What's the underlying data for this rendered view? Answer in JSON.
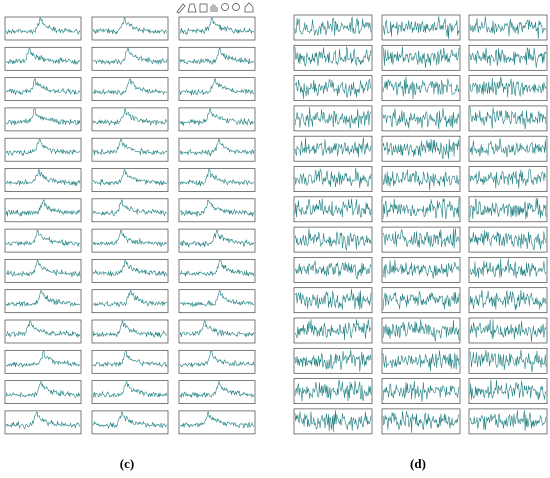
{
  "panels": [
    {
      "label": "(c)"
    },
    {
      "label": "(d)"
    }
  ]
}
